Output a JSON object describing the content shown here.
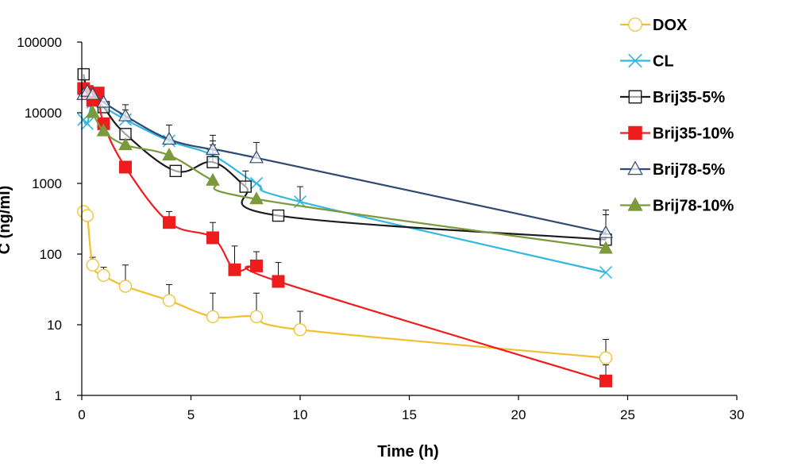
{
  "chart_data": {
    "type": "line",
    "title": "",
    "xlabel": "Time (h)",
    "ylabel": "C (ng/ml)",
    "xlim": [
      0,
      30
    ],
    "ylim": [
      1,
      100000
    ],
    "yscale": "log",
    "xticks": [
      0,
      5,
      10,
      15,
      20,
      25,
      30
    ],
    "xtick_labels": [
      "0",
      "5",
      "10",
      "15",
      "20",
      "25",
      "30"
    ],
    "yticks": [
      1,
      10,
      100,
      1000,
      10000,
      100000
    ],
    "ytick_labels": [
      "1",
      "10",
      "100",
      "1000",
      "10000",
      "100000"
    ],
    "grid": false,
    "legend_position": "right",
    "series": [
      {
        "name": "DOX",
        "color": "#f0c030",
        "marker": "circle-open",
        "x": [
          0.083,
          0.25,
          0.5,
          1,
          2,
          4,
          6,
          8,
          10,
          24
        ],
        "y": [
          400,
          350,
          70,
          50,
          35,
          22,
          13,
          13,
          8.5,
          3.4
        ],
        "error": [
          null,
          null,
          20,
          15,
          35,
          15,
          15,
          15,
          7,
          2.8
        ]
      },
      {
        "name": "CL",
        "color": "#35b8e0",
        "marker": "x",
        "x": [
          0.083,
          0.25,
          0.5,
          1,
          2,
          4,
          6,
          8,
          10,
          24
        ],
        "y": [
          8000,
          7000,
          14000,
          12000,
          8000,
          4000,
          2500,
          1000,
          550,
          55
        ],
        "error": [
          null,
          null,
          null,
          null,
          3000,
          null,
          1500,
          null,
          350,
          null
        ]
      },
      {
        "name": "Brij35-5%",
        "color": "#1a1a1a",
        "marker": "square-open",
        "x": [
          0.083,
          0.25,
          0.5,
          1,
          2,
          4.3,
          6,
          7.5,
          9,
          24
        ],
        "y": [
          35000,
          20000,
          18000,
          12000,
          5000,
          1500,
          2000,
          900,
          350,
          160
        ],
        "error": [
          null,
          null,
          null,
          null,
          null,
          null,
          1500,
          600,
          null,
          200
        ]
      },
      {
        "name": "Brij35-10%",
        "color": "#ee1c1c",
        "marker": "square-filled",
        "x": [
          0.083,
          0.25,
          0.5,
          0.75,
          1,
          2,
          4,
          6,
          7,
          8,
          9,
          24
        ],
        "y": [
          22000,
          20000,
          15000,
          19000,
          7000,
          1700,
          280,
          170,
          60,
          68,
          41,
          1.6
        ],
        "error": [
          null,
          null,
          null,
          null,
          null,
          null,
          120,
          110,
          70,
          40,
          35,
          1.1
        ]
      },
      {
        "name": "Brij78-5%",
        "color": "#2e4a72",
        "marker": "triangle-open",
        "x": [
          0.083,
          0.25,
          0.5,
          1,
          2,
          4,
          6,
          8,
          24
        ],
        "y": [
          18000,
          20000,
          18000,
          14000,
          9000,
          4200,
          3000,
          2300,
          200
        ],
        "error": [
          null,
          null,
          null,
          null,
          4000,
          2500,
          1800,
          1500,
          220
        ]
      },
      {
        "name": "Brij78-10%",
        "color": "#7a9a3c",
        "marker": "triangle-filled",
        "x": [
          0.5,
          1,
          2,
          4,
          6,
          8,
          24
        ],
        "y": [
          10000,
          5500,
          3500,
          2500,
          1100,
          600,
          120
        ],
        "error": [
          null,
          null,
          null,
          null,
          null,
          null,
          null
        ]
      }
    ]
  }
}
